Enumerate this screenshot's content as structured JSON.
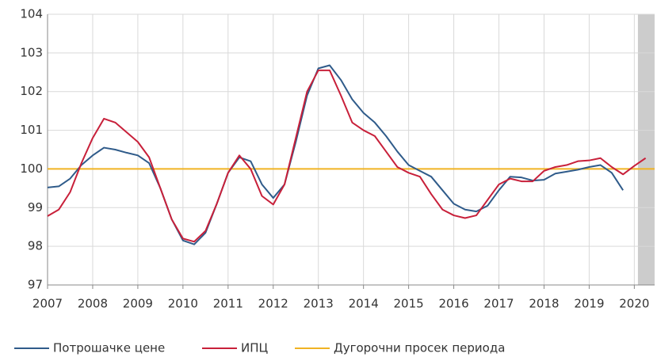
{
  "chart_data": {
    "type": "line",
    "x": [
      2007.0,
      2007.25,
      2007.5,
      2007.75,
      2008.0,
      2008.25,
      2008.5,
      2008.75,
      2009.0,
      2009.25,
      2009.5,
      2009.75,
      2010.0,
      2010.25,
      2010.5,
      2010.75,
      2011.0,
      2011.25,
      2011.5,
      2011.75,
      2012.0,
      2012.25,
      2012.5,
      2012.75,
      2013.0,
      2013.25,
      2013.5,
      2013.75,
      2014.0,
      2014.25,
      2014.5,
      2014.75,
      2015.0,
      2015.25,
      2015.5,
      2015.75,
      2016.0,
      2016.25,
      2016.5,
      2016.75,
      2017.0,
      2017.25,
      2017.5,
      2017.75,
      2018.0,
      2018.25,
      2018.5,
      2018.75,
      2019.0,
      2019.25,
      2019.5,
      2019.75,
      2020.0,
      2020.25
    ],
    "series": [
      {
        "name": "Потрошачке цене",
        "color": "#2f5b8a",
        "values": [
          99.52,
          99.55,
          99.75,
          100.1,
          100.35,
          100.55,
          100.5,
          100.42,
          100.35,
          100.15,
          99.5,
          98.7,
          98.15,
          98.05,
          98.35,
          99.1,
          99.9,
          100.3,
          100.2,
          99.6,
          99.25,
          99.6,
          100.7,
          101.9,
          102.6,
          102.68,
          102.3,
          101.8,
          101.45,
          101.2,
          100.85,
          100.45,
          100.1,
          99.95,
          99.8,
          99.45,
          99.1,
          98.95,
          98.9,
          99.05,
          99.45,
          99.8,
          99.78,
          99.7,
          99.72,
          99.88,
          99.93,
          99.98,
          100.05,
          100.1,
          99.9,
          99.45,
          null,
          null
        ]
      },
      {
        "name": "ИПЦ",
        "color": "#c8203a",
        "values": [
          98.78,
          98.95,
          99.4,
          100.15,
          100.8,
          101.3,
          101.2,
          100.95,
          100.7,
          100.3,
          99.5,
          98.7,
          98.2,
          98.12,
          98.4,
          99.1,
          99.9,
          100.35,
          100.0,
          99.3,
          99.08,
          99.6,
          100.8,
          102.0,
          102.55,
          102.55,
          101.9,
          101.2,
          101.0,
          100.85,
          100.45,
          100.05,
          99.9,
          99.8,
          99.35,
          98.95,
          98.8,
          98.73,
          98.8,
          99.2,
          99.6,
          99.75,
          99.68,
          99.68,
          99.95,
          100.05,
          100.1,
          100.2,
          100.22,
          100.28,
          100.05,
          99.86,
          100.08,
          100.28
        ]
      }
    ],
    "reference_line": {
      "name": "Дугорочни просек периода",
      "value": 100,
      "color": "#f0b323"
    },
    "shaded_region": {
      "x": [
        2020.08,
        2020.45
      ],
      "color": "#cccccc"
    },
    "xlim": [
      2007,
      2020.45
    ],
    "xticks": [
      2007,
      2008,
      2009,
      2010,
      2011,
      2012,
      2013,
      2014,
      2015,
      2016,
      2017,
      2018,
      2019,
      2020
    ],
    "ylim": [
      97,
      104
    ],
    "yticks": [
      97,
      98,
      99,
      100,
      101,
      102,
      103,
      104
    ],
    "grid": true,
    "legend": "bottom"
  }
}
